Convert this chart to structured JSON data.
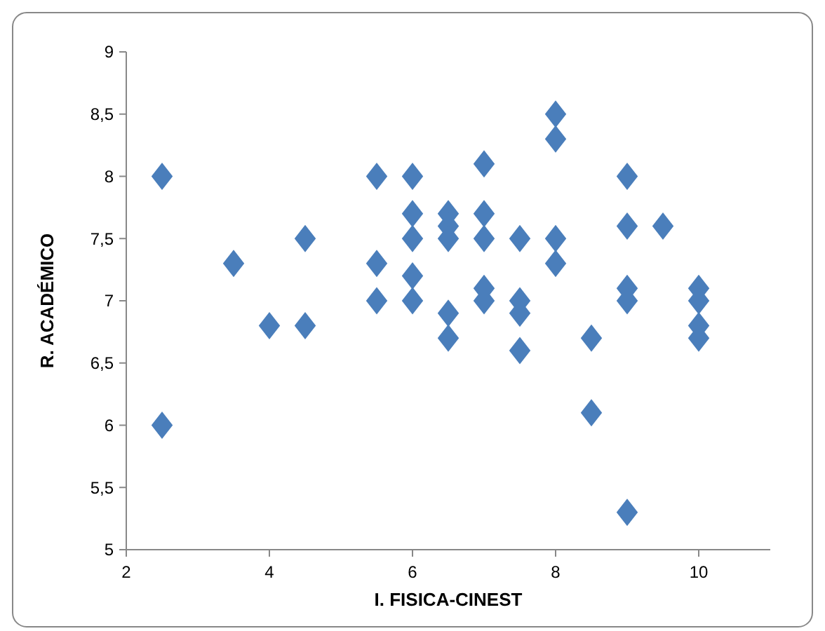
{
  "chart_data": {
    "type": "scatter",
    "xlabel": "I. FISICA-CINEST",
    "ylabel": "R. ACADÉMICO",
    "marker": "diamond",
    "grid": false,
    "xlim": [
      2,
      11
    ],
    "xticks": [
      2,
      4,
      6,
      8,
      10
    ],
    "ylim": [
      5,
      9
    ],
    "yticks": [
      5,
      {
        "value": 5.5,
        "label": "5,5"
      },
      6,
      {
        "value": 6.5,
        "label": "6,5"
      },
      7,
      {
        "value": 7.5,
        "label": "7,5"
      },
      8,
      {
        "value": 8.5,
        "label": "8,5"
      },
      9
    ],
    "series": [
      {
        "color": "#4a7ebb",
        "x": [
          2.5,
          2.5,
          3.5,
          4,
          4.5,
          4.5,
          5.5,
          5.5,
          5.5,
          6,
          6,
          6,
          6,
          6,
          6.5,
          6.5,
          6.5,
          6.5,
          6.5,
          7,
          7,
          7,
          7,
          7,
          7.5,
          7.5,
          7.5,
          7.5,
          8,
          8,
          8,
          8,
          8.5,
          8.5,
          9,
          9,
          9,
          9,
          9,
          9.5,
          10,
          10,
          10,
          10
        ],
        "values": [
          8,
          6,
          7.3,
          6.8,
          7.5,
          6.8,
          8,
          7.3,
          7.0,
          8,
          7.7,
          7.5,
          7.2,
          7.0,
          7.7,
          7.6,
          7.5,
          6.9,
          6.7,
          8.1,
          7.7,
          7.5,
          7.1,
          7.0,
          7.5,
          7.0,
          6.9,
          6.6,
          8.5,
          8.3,
          7.5,
          7.3,
          6.7,
          6.1,
          8,
          7.6,
          7.1,
          7.0,
          5.3,
          7.6,
          7.1,
          7.0,
          6.8,
          6.7
        ]
      }
    ]
  }
}
